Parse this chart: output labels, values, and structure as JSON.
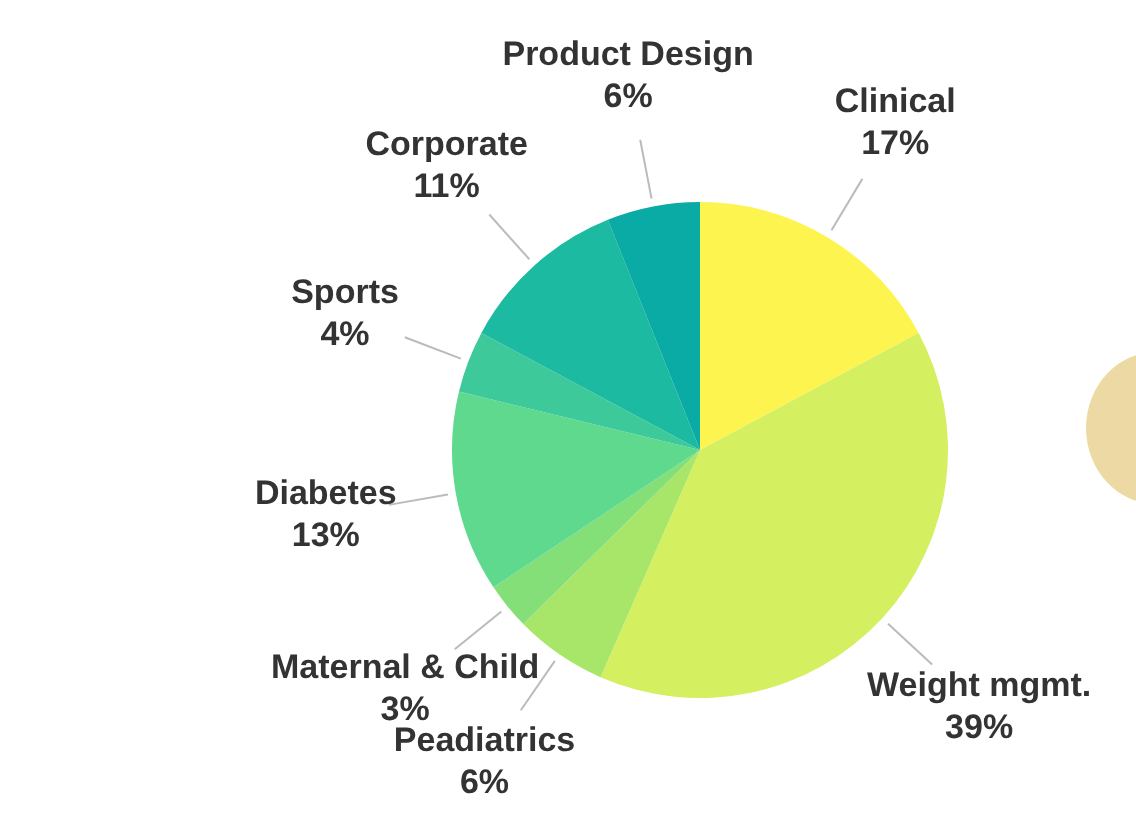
{
  "chart_data": {
    "type": "pie",
    "categories": [
      "Clinical",
      "Weight mgmt.",
      "Peadiatrics",
      "Maternal & Child",
      "Diabetes",
      "Sports",
      "Corporate",
      "Product Design"
    ],
    "values": [
      17,
      39,
      6,
      3,
      13,
      4,
      11,
      6
    ],
    "value_labels": [
      "17%",
      "39%",
      "6%",
      "3%",
      "13%",
      "4%",
      "11%",
      "6%"
    ],
    "colors": [
      "#fef450",
      "#d4ef5f",
      "#a8e66a",
      "#85df78",
      "#5ed98d",
      "#3ec99a",
      "#1cbaa0",
      "#0aaaa5"
    ],
    "legend": false
  }
}
